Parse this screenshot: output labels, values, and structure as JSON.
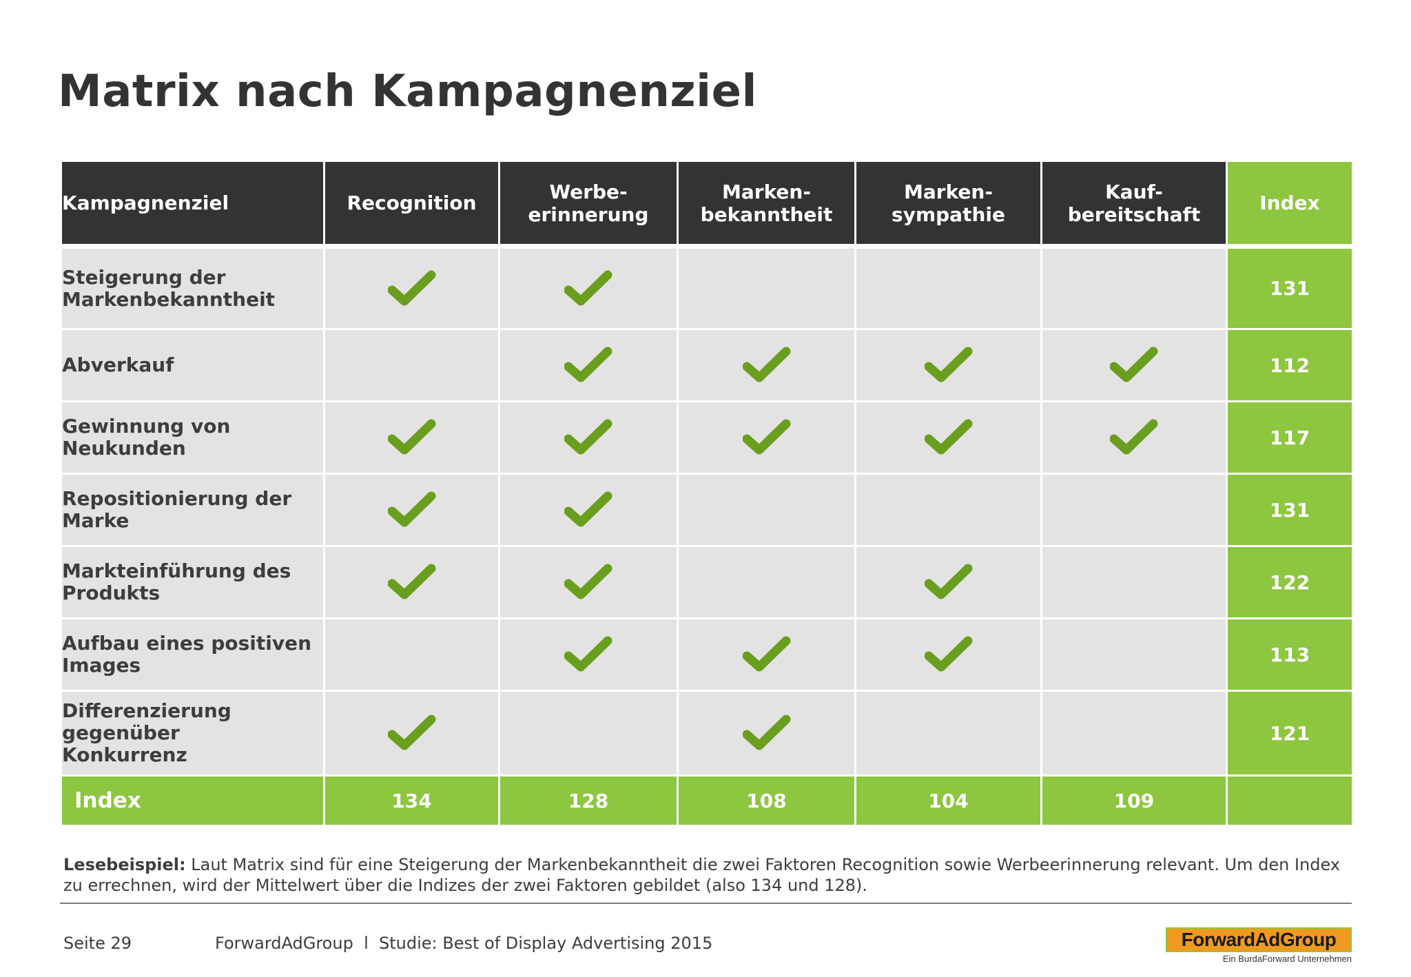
{
  "title": "Matrix nach Kampagnenziel",
  "table": {
    "headers": [
      "Kampagnenziel",
      "Recognition",
      "Werbe-\nerinnerung",
      "Marken-\nbekanntheit",
      "Marken-\nsympathie",
      "Kauf-\nbereitschaft",
      "Index"
    ],
    "rows": [
      {
        "label": "Steigerung der\nMarkenbekanntheit",
        "checks": [
          true,
          true,
          false,
          false,
          false
        ],
        "index": "131"
      },
      {
        "label": "Abverkauf",
        "checks": [
          false,
          true,
          true,
          true,
          true
        ],
        "index": "112"
      },
      {
        "label": "Gewinnung von\nNeukunden",
        "checks": [
          true,
          true,
          true,
          true,
          true
        ],
        "index": "117"
      },
      {
        "label": "Repositionierung der\nMarke",
        "checks": [
          true,
          true,
          false,
          false,
          false
        ],
        "index": "131"
      },
      {
        "label": "Markteinführung des\nProdukts",
        "checks": [
          true,
          true,
          false,
          true,
          false
        ],
        "index": "122"
      },
      {
        "label": "Aufbau eines positiven\nImages",
        "checks": [
          false,
          true,
          true,
          true,
          false
        ],
        "index": "113"
      },
      {
        "label": "Differenzierung\ngegenüber\nKonkurrenz",
        "checks": [
          true,
          false,
          true,
          false,
          false
        ],
        "index": "121"
      }
    ],
    "footer": {
      "label": "Index",
      "values": [
        "134",
        "128",
        "108",
        "104",
        "109"
      ]
    }
  },
  "note": {
    "bold": "Lesebeispiel:",
    "text": " Laut Matrix sind für eine Steigerung der Markenbekanntheit die zwei Faktoren Recognition sowie Werbeerinnerung relevant. Um den Index zu errechnen, wird der Mittelwert über die Indizes der zwei Faktoren gebildet (also 134 und 128)."
  },
  "footer": {
    "page": "Seite 29",
    "source": "ForwardAdGroup  l  Studie: Best of Display Advertising 2015",
    "logo": "ForwardAdGroup",
    "logo_sub": "Ein BurdaForward Unternehmen"
  },
  "colors": {
    "dark": "#333333",
    "green": "#8dc63f",
    "check": "#6a9e1f",
    "cell": "#e3e3e3"
  }
}
